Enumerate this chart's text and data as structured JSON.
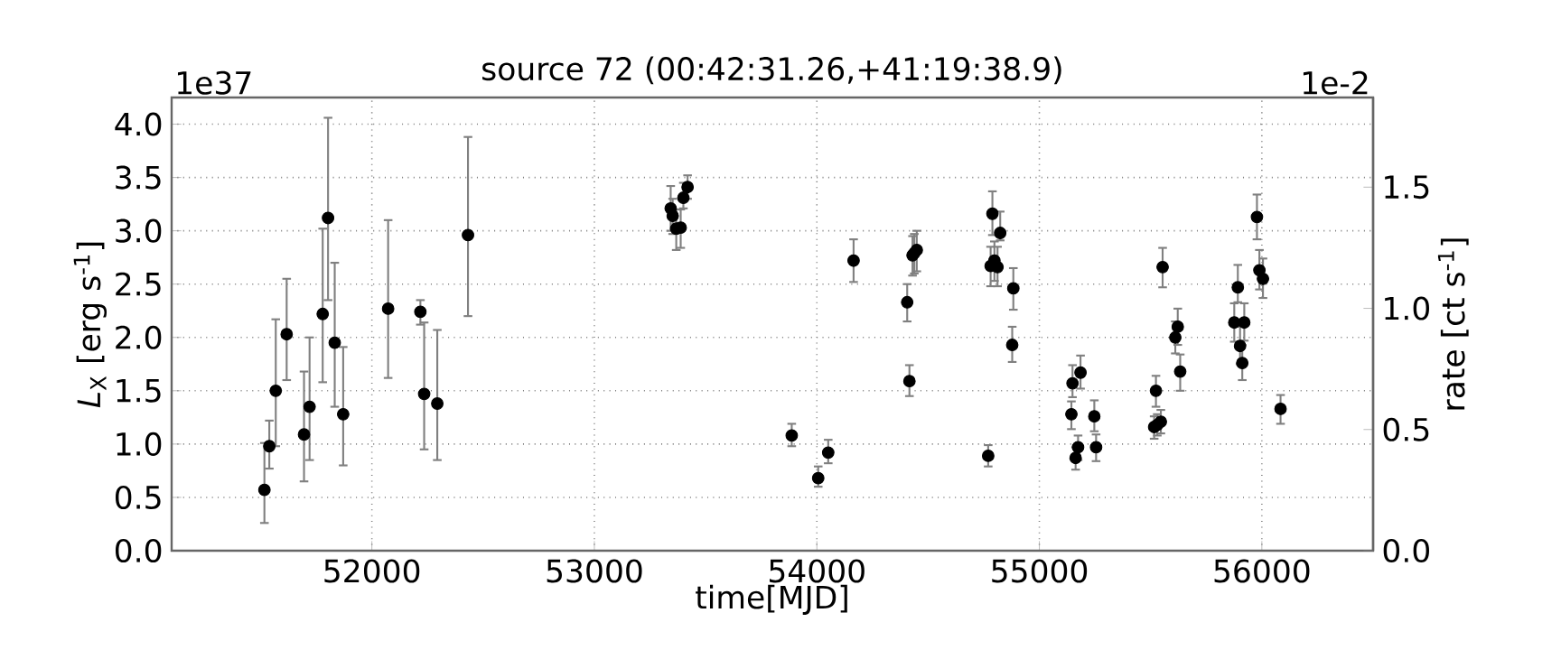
{
  "chart_data": {
    "type": "scatter",
    "title": "source 72 (00:42:31.26,+41:19:38.9)",
    "xlabel": "time[MJD]",
    "ylabel": "*L*$_{X}$ [erg s$^{-1}$]",
    "y2label": "rate [ct s$^{-1}$]",
    "annotations": [
      "1e37",
      "1e-2"
    ],
    "xlim": [
      51100,
      56500
    ],
    "xticks": [
      52000,
      53000,
      54000,
      55000,
      56000
    ],
    "ylim": [
      0,
      4.25
    ],
    "yticks": [
      {
        "value": 0,
        "label": "0.0"
      },
      {
        "value": 0.5,
        "label": "0.5"
      },
      {
        "value": 1,
        "label": "1.0"
      },
      {
        "value": 1.5,
        "label": "1.5"
      },
      {
        "value": 2,
        "label": "2.0"
      },
      {
        "value": 2.5,
        "label": "2.5"
      },
      {
        "value": 3,
        "label": "3.0"
      },
      {
        "value": 3.5,
        "label": "3.5"
      },
      {
        "value": 4,
        "label": "4.0"
      }
    ],
    "y2lim": [
      0,
      1.87
    ],
    "y2ticks": [
      {
        "value": 0,
        "label": "0.0"
      },
      {
        "value": 0.5,
        "label": "0.5"
      },
      {
        "value": 1,
        "label": "1.0"
      },
      {
        "value": 1.5,
        "label": "1.5"
      }
    ],
    "grid": true,
    "marker": "circle",
    "series": [
      {
        "color": "#000000",
        "x": [
          51517,
          51539,
          51568,
          51617,
          51695,
          51720,
          51779,
          51803,
          51833,
          51871,
          52073,
          52218,
          52235,
          52294,
          52432,
          53343,
          53352,
          53368,
          53388,
          53400,
          53419,
          53887,
          54006,
          54051,
          54165,
          54406,
          54416,
          54430,
          54438,
          54449,
          54770,
          54781,
          54789,
          54798,
          54812,
          54824,
          54878,
          54883,
          55144,
          55149,
          55163,
          55174,
          55185,
          55247,
          55255,
          55516,
          55524,
          55530,
          55546,
          55554,
          55611,
          55622,
          55633,
          55876,
          55892,
          55902,
          55912,
          55921,
          55978,
          55989,
          56005,
          56084
        ],
        "values": [
          0.57,
          0.98,
          1.5,
          2.03,
          1.09,
          1.35,
          2.22,
          3.12,
          1.95,
          1.28,
          2.27,
          2.24,
          1.47,
          1.38,
          2.96,
          3.21,
          3.14,
          3.02,
          3.03,
          3.31,
          3.41,
          1.08,
          0.68,
          0.92,
          2.72,
          2.33,
          1.59,
          2.77,
          2.79,
          2.82,
          0.89,
          2.67,
          3.16,
          2.72,
          2.66,
          2.98,
          1.93,
          2.46,
          1.28,
          1.57,
          0.87,
          0.97,
          1.67,
          1.26,
          0.97,
          1.16,
          1.5,
          1.18,
          1.21,
          2.66,
          2.0,
          2.1,
          1.68,
          2.14,
          2.47,
          1.92,
          1.76,
          2.14,
          3.13,
          2.63,
          2.55,
          1.33
        ],
        "errors": [
          [
            0.26,
            1.01
          ],
          [
            0.77,
            1.22
          ],
          [
            0.98,
            2.17
          ],
          [
            1.6,
            2.55
          ],
          [
            0.65,
            1.68
          ],
          [
            0.85,
            2.0
          ],
          [
            1.58,
            3.02
          ],
          [
            2.35,
            4.06
          ],
          [
            1.35,
            2.7
          ],
          [
            0.8,
            1.91
          ],
          [
            1.62,
            3.1
          ],
          [
            2.12,
            2.35
          ],
          [
            0.95,
            2.14
          ],
          [
            0.85,
            2.07
          ],
          [
            2.2,
            3.88
          ],
          [
            3.0,
            3.42
          ],
          [
            2.97,
            3.3
          ],
          [
            2.82,
            3.2
          ],
          [
            2.84,
            3.2
          ],
          [
            3.21,
            3.45
          ],
          [
            3.3,
            3.52
          ],
          [
            0.98,
            1.19
          ],
          [
            0.6,
            0.79
          ],
          [
            0.82,
            1.04
          ],
          [
            2.52,
            2.92
          ],
          [
            2.15,
            2.5
          ],
          [
            1.45,
            1.74
          ],
          [
            2.58,
            2.95
          ],
          [
            2.6,
            2.97
          ],
          [
            2.62,
            3.0
          ],
          [
            0.79,
            0.99
          ],
          [
            2.48,
            2.85
          ],
          [
            2.96,
            3.37
          ],
          [
            2.53,
            2.9
          ],
          [
            2.48,
            2.85
          ],
          [
            2.91,
            3.18
          ],
          [
            1.77,
            2.1
          ],
          [
            2.26,
            2.65
          ],
          [
            1.14,
            1.4
          ],
          [
            1.44,
            1.74
          ],
          [
            0.76,
            0.97
          ],
          [
            0.85,
            1.08
          ],
          [
            1.52,
            1.83
          ],
          [
            1.12,
            1.41
          ],
          [
            0.84,
            1.09
          ],
          [
            1.05,
            1.26
          ],
          [
            1.35,
            1.64
          ],
          [
            1.08,
            1.28
          ],
          [
            1.1,
            1.32
          ],
          [
            2.47,
            2.84
          ],
          [
            1.85,
            2.15
          ],
          [
            1.93,
            2.27
          ],
          [
            1.5,
            1.84
          ],
          [
            1.96,
            2.32
          ],
          [
            2.33,
            2.68
          ],
          [
            1.75,
            2.1
          ],
          [
            1.6,
            1.93
          ],
          [
            1.97,
            2.32
          ],
          [
            2.92,
            3.34
          ],
          [
            2.45,
            2.82
          ],
          [
            2.37,
            2.74
          ],
          [
            1.19,
            1.46
          ]
        ]
      }
    ]
  }
}
